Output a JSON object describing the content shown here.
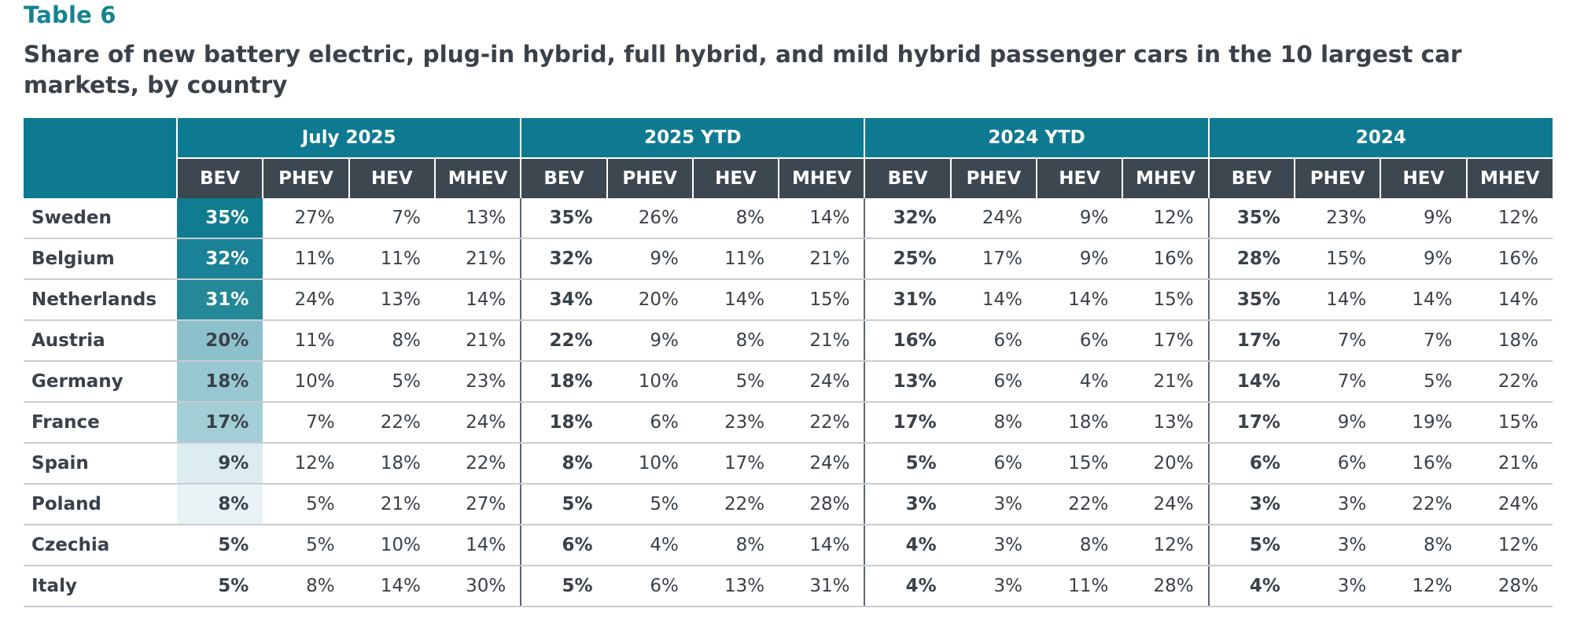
{
  "label": "Table 6",
  "title": "Share of new battery electric, plug-in hybrid, full hybrid, and mild hybrid passenger cars in the 10 largest car markets, by country",
  "groups": [
    "July 2025",
    "2025 YTD",
    "2024 YTD",
    "2024"
  ],
  "sub_headers": [
    "BEV",
    "PHEV",
    "HEV",
    "MHEV"
  ],
  "bev_heat_colors": {
    "Sweden": "#117c90",
    "Belgium": "#1a8296",
    "Netherlands": "#248899",
    "Austria": "#8cc1cb",
    "Germany": "#98c8d1",
    "France": "#a3ced6",
    "Spain": "#dcecf0",
    "Poland": "#e9f2f4",
    "Czechia": "#ffffff",
    "Italy": "#ffffff"
  },
  "rows": [
    {
      "country": "Sweden",
      "values": [
        "35%",
        "27%",
        "7%",
        "13%",
        "35%",
        "26%",
        "8%",
        "14%",
        "32%",
        "24%",
        "9%",
        "12%",
        "35%",
        "23%",
        "9%",
        "12%"
      ]
    },
    {
      "country": "Belgium",
      "values": [
        "32%",
        "11%",
        "11%",
        "21%",
        "32%",
        "9%",
        "11%",
        "21%",
        "25%",
        "17%",
        "9%",
        "16%",
        "28%",
        "15%",
        "9%",
        "16%"
      ]
    },
    {
      "country": "Netherlands",
      "values": [
        "31%",
        "24%",
        "13%",
        "14%",
        "34%",
        "20%",
        "14%",
        "15%",
        "31%",
        "14%",
        "14%",
        "15%",
        "35%",
        "14%",
        "14%",
        "14%"
      ]
    },
    {
      "country": "Austria",
      "values": [
        "20%",
        "11%",
        "8%",
        "21%",
        "22%",
        "9%",
        "8%",
        "21%",
        "16%",
        "6%",
        "6%",
        "17%",
        "17%",
        "7%",
        "7%",
        "18%"
      ]
    },
    {
      "country": "Germany",
      "values": [
        "18%",
        "10%",
        "5%",
        "23%",
        "18%",
        "10%",
        "5%",
        "24%",
        "13%",
        "6%",
        "4%",
        "21%",
        "14%",
        "7%",
        "5%",
        "22%"
      ]
    },
    {
      "country": "France",
      "values": [
        "17%",
        "7%",
        "22%",
        "24%",
        "18%",
        "6%",
        "23%",
        "22%",
        "17%",
        "8%",
        "18%",
        "13%",
        "17%",
        "9%",
        "19%",
        "15%"
      ]
    },
    {
      "country": "Spain",
      "values": [
        "9%",
        "12%",
        "18%",
        "22%",
        "8%",
        "10%",
        "17%",
        "24%",
        "5%",
        "6%",
        "15%",
        "20%",
        "6%",
        "6%",
        "16%",
        "21%"
      ]
    },
    {
      "country": "Poland",
      "values": [
        "8%",
        "5%",
        "21%",
        "27%",
        "5%",
        "5%",
        "22%",
        "28%",
        "3%",
        "3%",
        "22%",
        "24%",
        "3%",
        "3%",
        "22%",
        "24%"
      ]
    },
    {
      "country": "Czechia",
      "values": [
        "5%",
        "5%",
        "10%",
        "14%",
        "6%",
        "4%",
        "8%",
        "14%",
        "4%",
        "3%",
        "8%",
        "12%",
        "5%",
        "3%",
        "8%",
        "12%"
      ]
    },
    {
      "country": "Italy",
      "values": [
        "5%",
        "8%",
        "14%",
        "30%",
        "5%",
        "6%",
        "13%",
        "31%",
        "4%",
        "3%",
        "11%",
        "28%",
        "4%",
        "3%",
        "12%",
        "28%"
      ]
    }
  ]
}
